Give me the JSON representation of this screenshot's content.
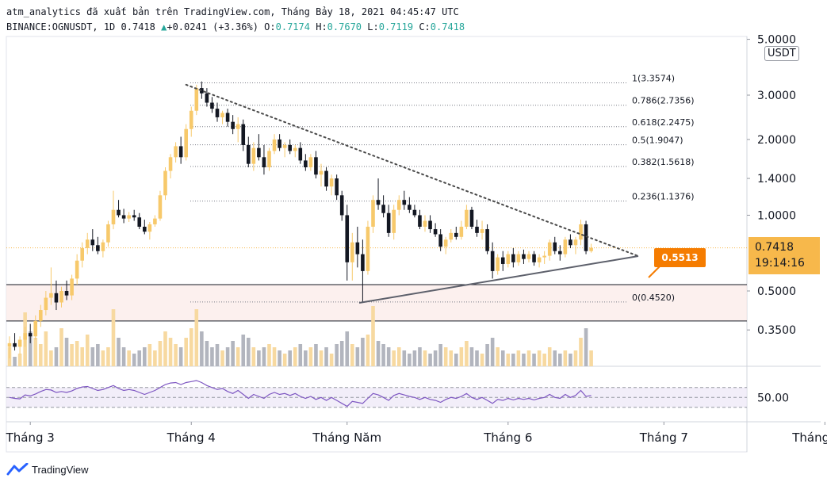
{
  "header": {
    "line1": "atm_analytics đã xuất bản trên TradingView.com, Tháng Bảy 18, 2021 04:45:47 UTC",
    "symbol": "BINANCE:OGNUSDT, 1D",
    "last": "0.7418",
    "change": "+0.0241 (+3.36%)",
    "o_label": "O:",
    "o": "0.7174",
    "h_label": "H:",
    "h": "0.7670",
    "l_label": "L:",
    "l": "0.7119",
    "c_label": "C:",
    "c": "0.7418"
  },
  "currency": "USDT",
  "price_tag": {
    "price": "0.7418",
    "countdown": "19:14:16"
  },
  "callout": "0.5513",
  "brand": "TradingView",
  "colors": {
    "up": "#f7c96b",
    "down": "#131722",
    "volume_up": "#f7d9a0",
    "volume_down": "#b2b5be",
    "rsi": "#7e57c2",
    "accent": "#f57c00"
  },
  "chart_data": {
    "type": "candlestick",
    "y_scale": "log",
    "y_ticks": [
      "5.0000",
      "3.0000",
      "2.0000",
      "1.4000",
      "1.0000",
      "0.5000",
      "0.3500"
    ],
    "x_ticks": [
      "Tháng 3",
      "Tháng 4",
      "Tháng Năm",
      "Tháng 6",
      "Tháng 7",
      "Tháng Tám"
    ],
    "fib_levels": [
      {
        "label": "1(3.3574)",
        "value": 3.3574
      },
      {
        "label": "0.786(2.7356)",
        "value": 2.7356
      },
      {
        "label": "0.618(2.2475)",
        "value": 2.2475
      },
      {
        "label": "0.5(1.9047)",
        "value": 1.9047
      },
      {
        "label": "0.382(1.5618)",
        "value": 1.5618
      },
      {
        "label": "0.236(1.1376)",
        "value": 1.1376
      },
      {
        "label": "0(0.4520)",
        "value": 0.452
      }
    ],
    "support_zone": [
      0.38,
      0.53
    ],
    "rsi_ticks": [
      "50.00"
    ],
    "ohlc": [
      [
        0.3,
        0.33,
        0.27,
        0.31
      ],
      [
        0.31,
        0.34,
        0.29,
        0.3
      ],
      [
        0.3,
        0.33,
        0.28,
        0.32
      ],
      [
        0.32,
        0.36,
        0.3,
        0.34
      ],
      [
        0.34,
        0.37,
        0.31,
        0.33
      ],
      [
        0.33,
        0.4,
        0.32,
        0.38
      ],
      [
        0.38,
        0.44,
        0.36,
        0.42
      ],
      [
        0.42,
        0.5,
        0.4,
        0.47
      ],
      [
        0.47,
        0.62,
        0.44,
        0.49
      ],
      [
        0.49,
        0.55,
        0.42,
        0.45
      ],
      [
        0.45,
        0.52,
        0.43,
        0.5
      ],
      [
        0.5,
        0.55,
        0.46,
        0.48
      ],
      [
        0.48,
        0.58,
        0.46,
        0.56
      ],
      [
        0.56,
        0.7,
        0.53,
        0.66
      ],
      [
        0.66,
        0.78,
        0.62,
        0.74
      ],
      [
        0.74,
        0.85,
        0.7,
        0.8
      ],
      [
        0.8,
        0.88,
        0.72,
        0.76
      ],
      [
        0.76,
        0.82,
        0.7,
        0.72
      ],
      [
        0.72,
        0.8,
        0.68,
        0.78
      ],
      [
        0.78,
        0.95,
        0.75,
        0.92
      ],
      [
        0.92,
        1.25,
        0.88,
        1.05
      ],
      [
        1.05,
        1.15,
        0.98,
        1.0
      ],
      [
        1.0,
        1.06,
        0.93,
        0.97
      ],
      [
        0.97,
        1.03,
        0.94,
        1.0
      ],
      [
        1.0,
        1.05,
        0.95,
        0.98
      ],
      [
        0.98,
        1.02,
        0.88,
        0.9
      ],
      [
        0.9,
        0.96,
        0.84,
        0.86
      ],
      [
        0.86,
        0.94,
        0.8,
        0.92
      ],
      [
        0.92,
        1.0,
        0.9,
        0.97
      ],
      [
        0.97,
        1.25,
        0.95,
        1.2
      ],
      [
        1.2,
        1.55,
        1.15,
        1.5
      ],
      [
        1.5,
        1.75,
        1.4,
        1.7
      ],
      [
        1.7,
        1.95,
        1.62,
        1.88
      ],
      [
        1.88,
        2.05,
        1.6,
        1.7
      ],
      [
        1.7,
        2.3,
        1.65,
        2.2
      ],
      [
        2.2,
        2.7,
        2.05,
        2.6
      ],
      [
        2.6,
        3.3,
        2.5,
        3.2
      ],
      [
        3.2,
        3.4,
        2.9,
        3.05
      ],
      [
        3.05,
        3.2,
        2.7,
        2.8
      ],
      [
        2.8,
        2.95,
        2.55,
        2.65
      ],
      [
        2.65,
        2.8,
        2.35,
        2.45
      ],
      [
        2.45,
        2.6,
        2.3,
        2.55
      ],
      [
        2.55,
        2.65,
        2.25,
        2.35
      ],
      [
        2.35,
        2.5,
        2.1,
        2.2
      ],
      [
        2.2,
        2.45,
        1.95,
        2.3
      ],
      [
        2.3,
        2.4,
        1.8,
        1.9
      ],
      [
        1.9,
        2.05,
        1.55,
        1.6
      ],
      [
        1.6,
        1.95,
        1.5,
        1.85
      ],
      [
        1.85,
        2.1,
        1.65,
        1.7
      ],
      [
        1.7,
        1.9,
        1.45,
        1.55
      ],
      [
        1.55,
        1.85,
        1.5,
        1.8
      ],
      [
        1.8,
        2.1,
        1.75,
        2.0
      ],
      [
        2.0,
        2.1,
        1.8,
        1.85
      ],
      [
        1.85,
        1.95,
        1.7,
        1.9
      ],
      [
        1.9,
        2.0,
        1.75,
        1.8
      ],
      [
        1.8,
        1.9,
        1.7,
        1.85
      ],
      [
        1.85,
        1.95,
        1.6,
        1.65
      ],
      [
        1.65,
        1.75,
        1.5,
        1.55
      ],
      [
        1.55,
        1.75,
        1.5,
        1.7
      ],
      [
        1.7,
        1.8,
        1.4,
        1.45
      ],
      [
        1.45,
        1.6,
        1.3,
        1.5
      ],
      [
        1.5,
        1.55,
        1.25,
        1.3
      ],
      [
        1.3,
        1.45,
        1.2,
        1.4
      ],
      [
        1.4,
        1.45,
        1.15,
        1.2
      ],
      [
        1.2,
        1.25,
        0.95,
        1.0
      ],
      [
        1.0,
        1.1,
        0.55,
        0.65
      ],
      [
        0.65,
        0.85,
        0.55,
        0.78
      ],
      [
        0.78,
        0.9,
        0.62,
        0.7
      ],
      [
        0.7,
        0.8,
        0.45,
        0.6
      ],
      [
        0.6,
        0.95,
        0.58,
        0.9
      ],
      [
        0.9,
        1.2,
        0.85,
        1.15
      ],
      [
        1.15,
        1.4,
        1.05,
        1.1
      ],
      [
        1.1,
        1.2,
        0.98,
        1.02
      ],
      [
        1.02,
        1.1,
        0.82,
        0.85
      ],
      [
        0.85,
        1.1,
        0.8,
        1.05
      ],
      [
        1.05,
        1.2,
        1.0,
        1.15
      ],
      [
        1.15,
        1.25,
        1.05,
        1.1
      ],
      [
        1.1,
        1.18,
        1.02,
        1.05
      ],
      [
        1.05,
        1.1,
        0.98,
        1.0
      ],
      [
        1.0,
        1.05,
        0.88,
        0.9
      ],
      [
        0.9,
        1.0,
        0.86,
        0.95
      ],
      [
        0.95,
        1.0,
        0.85,
        0.88
      ],
      [
        0.88,
        0.93,
        0.82,
        0.84
      ],
      [
        0.84,
        0.88,
        0.72,
        0.75
      ],
      [
        0.75,
        0.82,
        0.7,
        0.8
      ],
      [
        0.8,
        0.88,
        0.78,
        0.85
      ],
      [
        0.85,
        0.9,
        0.8,
        0.82
      ],
      [
        0.82,
        0.95,
        0.8,
        0.9
      ],
      [
        0.9,
        1.1,
        0.88,
        1.05
      ],
      [
        1.05,
        1.08,
        0.88,
        0.9
      ],
      [
        0.9,
        0.96,
        0.82,
        0.85
      ],
      [
        0.85,
        0.95,
        0.8,
        0.88
      ],
      [
        0.88,
        0.92,
        0.7,
        0.72
      ],
      [
        0.72,
        0.78,
        0.56,
        0.6
      ],
      [
        0.6,
        0.7,
        0.58,
        0.68
      ],
      [
        0.68,
        0.72,
        0.6,
        0.64
      ],
      [
        0.64,
        0.72,
        0.62,
        0.7
      ],
      [
        0.7,
        0.74,
        0.62,
        0.65
      ],
      [
        0.65,
        0.72,
        0.63,
        0.7
      ],
      [
        0.7,
        0.73,
        0.64,
        0.67
      ],
      [
        0.67,
        0.72,
        0.65,
        0.7
      ],
      [
        0.7,
        0.72,
        0.63,
        0.65
      ],
      [
        0.65,
        0.7,
        0.62,
        0.68
      ],
      [
        0.68,
        0.72,
        0.64,
        0.69
      ],
      [
        0.69,
        0.8,
        0.66,
        0.78
      ],
      [
        0.78,
        0.82,
        0.7,
        0.72
      ],
      [
        0.72,
        0.76,
        0.66,
        0.7
      ],
      [
        0.7,
        0.82,
        0.68,
        0.8
      ],
      [
        0.8,
        0.84,
        0.74,
        0.76
      ],
      [
        0.76,
        0.82,
        0.7,
        0.8
      ],
      [
        0.8,
        0.96,
        0.76,
        0.92
      ],
      [
        0.92,
        0.95,
        0.7,
        0.72
      ],
      [
        0.72,
        0.77,
        0.71,
        0.742
      ]
    ],
    "volume": [
      0.3,
      0.15,
      0.2,
      0.85,
      0.55,
      0.45,
      0.35,
      0.55,
      0.25,
      0.3,
      0.6,
      0.45,
      0.35,
      0.4,
      0.3,
      0.5,
      0.3,
      0.35,
      0.25,
      0.3,
      0.9,
      0.45,
      0.3,
      0.25,
      0.2,
      0.25,
      0.3,
      0.35,
      0.25,
      0.4,
      0.55,
      0.45,
      0.35,
      0.3,
      0.45,
      0.6,
      0.9,
      0.55,
      0.4,
      0.3,
      0.35,
      0.25,
      0.3,
      0.4,
      0.3,
      0.5,
      0.45,
      0.3,
      0.25,
      0.3,
      0.35,
      0.3,
      0.25,
      0.2,
      0.25,
      0.3,
      0.35,
      0.25,
      0.3,
      0.35,
      0.25,
      0.3,
      0.2,
      0.35,
      0.4,
      0.55,
      0.35,
      0.3,
      0.45,
      0.5,
      0.95,
      0.4,
      0.35,
      0.3,
      0.25,
      0.3,
      0.25,
      0.2,
      0.25,
      0.3,
      0.25,
      0.2,
      0.25,
      0.35,
      0.3,
      0.25,
      0.2,
      0.3,
      0.4,
      0.3,
      0.25,
      0.2,
      0.35,
      0.45,
      0.3,
      0.25,
      0.2,
      0.2,
      0.25,
      0.2,
      0.25,
      0.2,
      0.25,
      0.2,
      0.3,
      0.25,
      0.2,
      0.25,
      0.2,
      0.25,
      0.45,
      0.6,
      0.25
    ],
    "rsi": [
      50,
      48,
      47,
      55,
      53,
      57,
      62,
      66,
      65,
      60,
      62,
      60,
      63,
      68,
      71,
      72,
      68,
      64,
      66,
      70,
      74,
      68,
      64,
      66,
      64,
      60,
      56,
      60,
      64,
      70,
      76,
      79,
      80,
      76,
      80,
      82,
      84,
      80,
      74,
      70,
      66,
      68,
      62,
      58,
      64,
      56,
      48,
      56,
      52,
      48,
      56,
      60,
      56,
      58,
      54,
      58,
      52,
      48,
      52,
      46,
      50,
      44,
      50,
      44,
      38,
      32,
      42,
      40,
      38,
      48,
      58,
      55,
      50,
      44,
      54,
      58,
      55,
      52,
      50,
      46,
      50,
      46,
      44,
      40,
      46,
      50,
      48,
      52,
      58,
      50,
      46,
      50,
      44,
      38,
      46,
      44,
      48,
      45,
      48,
      46,
      48,
      45,
      48,
      50,
      56,
      50,
      48,
      56,
      50,
      54,
      64,
      52,
      54
    ]
  }
}
